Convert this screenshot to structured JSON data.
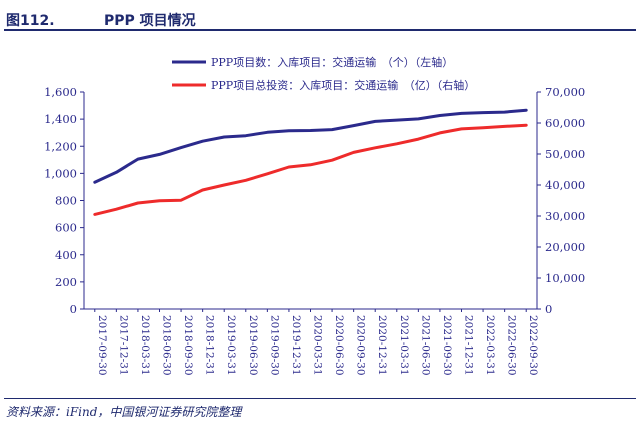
{
  "figure": {
    "number": "图112.",
    "title": "PPP 项目情况",
    "source": "资料来源：iFind，中国银河证券研究院整理"
  },
  "chart_data": {
    "type": "line",
    "x": [
      "2017-09-30",
      "2017-12-31",
      "2018-03-31",
      "2018-06-30",
      "2018-09-30",
      "2018-12-31",
      "2019-03-31",
      "2019-06-30",
      "2019-09-30",
      "2019-12-31",
      "2020-03-31",
      "2020-06-30",
      "2020-09-30",
      "2020-12-31",
      "2021-03-31",
      "2021-06-30",
      "2021-09-30",
      "2021-12-31",
      "2022-03-31",
      "2022-06-30",
      "2022-09-30"
    ],
    "series": [
      {
        "name": "PPP项目数：入库项目：交通运输　（个）（左轴）",
        "axis": "left",
        "color": "#2b2a8c",
        "values": [
          935,
          1008,
          1105,
          1140,
          1190,
          1237,
          1268,
          1278,
          1303,
          1315,
          1316,
          1323,
          1352,
          1383,
          1393,
          1402,
          1427,
          1442,
          1448,
          1452,
          1466
        ]
      },
      {
        "name": "PPP项目总投资：入库项目：交通运输　（亿）（右轴）",
        "axis": "right",
        "color": "#ee2b2b",
        "values": [
          30500,
          32200,
          34200,
          34900,
          35100,
          38400,
          40000,
          41500,
          43600,
          45800,
          46500,
          48000,
          50500,
          52000,
          53300,
          54800,
          56800,
          58100,
          58500,
          58900,
          59300
        ]
      }
    ],
    "y_left": {
      "ylim": [
        0,
        1600
      ],
      "ticks": [
        "0",
        "200",
        "400",
        "600",
        "800",
        "1,000",
        "1,200",
        "1,400",
        "1,600"
      ]
    },
    "y_right": {
      "ylim": [
        0,
        70000
      ],
      "ticks": [
        "0",
        "10,000",
        "20,000",
        "30,000",
        "40,000",
        "50,000",
        "60,000",
        "70,000"
      ]
    },
    "legend_position": "top",
    "grid": false,
    "axis_color": "#2b2a8c"
  }
}
